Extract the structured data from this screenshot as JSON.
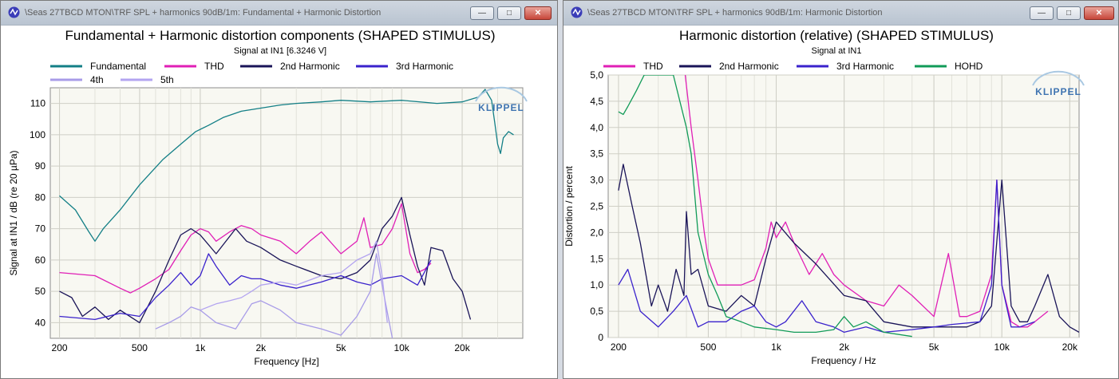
{
  "windows": [
    {
      "title": "\\Seas 27TBCD MTON\\TRF SPL + harmonics 90dB/1m: Fundamental + Harmonic Distortion",
      "buttons": {
        "minimize": "—",
        "maximize": "□",
        "close": "✕"
      }
    },
    {
      "title": "\\Seas 27TBCD MTON\\TRF SPL + harmonics 90dB/1m: Harmonic Distortion",
      "buttons": {
        "minimize": "—",
        "maximize": "□",
        "close": "✕"
      }
    }
  ],
  "icon": "klippel-app-icon",
  "chart_data": [
    {
      "type": "line",
      "title": "Fundamental + Harmonic distortion components (SHAPED STIMULUS)",
      "subtitle": "Signal at IN1 [6.3246 V]",
      "xlabel": "Frequency [Hz]",
      "ylabel": "Signal at IN1 / dB (re 20 µPa)",
      "xscale": "log",
      "xlim": [
        180,
        40000
      ],
      "ylim": [
        35,
        115
      ],
      "xticks": [
        200,
        500,
        1000,
        2000,
        5000,
        10000,
        20000
      ],
      "xtick_labels": [
        "200",
        "500",
        "1k",
        "2k",
        "5k",
        "10k",
        "20k"
      ],
      "yticks": [
        40,
        50,
        60,
        70,
        80,
        90,
        100,
        110
      ],
      "ytick_labels": [
        "40",
        "50",
        "60",
        "70",
        "80",
        "90",
        "100",
        "110"
      ],
      "grid": true,
      "legend_position": "top-left",
      "logo": "KLIPPEL",
      "series": [
        {
          "name": "Fundamental",
          "color": "#137f86",
          "x": [
            200,
            240,
            280,
            300,
            330,
            400,
            500,
            650,
            800,
            950,
            1100,
            1300,
            1600,
            2000,
            2500,
            3000,
            4000,
            5000,
            7000,
            10000,
            15000,
            20000,
            24000,
            26000,
            28000,
            29000,
            30000,
            31000,
            32000,
            34000,
            36000
          ],
          "y": [
            80.5,
            76,
            69,
            66,
            70,
            76,
            84,
            92,
            97,
            101,
            103,
            105.5,
            107.5,
            108.5,
            109.5,
            110,
            110.5,
            111,
            110.5,
            111,
            110,
            110.5,
            112,
            114.5,
            111,
            104,
            97,
            94,
            99,
            101,
            100
          ]
        },
        {
          "name": "THD",
          "color": "#e01fb6",
          "x": [
            200,
            300,
            400,
            450,
            500,
            600,
            700,
            800,
            900,
            1000,
            1100,
            1200,
            1400,
            1600,
            1800,
            2000,
            2500,
            3000,
            3500,
            4000,
            5000,
            6000,
            6500,
            7000,
            8000,
            9000,
            10000,
            11000,
            12000,
            13000,
            14000
          ],
          "y": [
            56,
            55,
            51,
            49.5,
            51,
            54,
            57,
            63,
            68,
            70,
            69,
            66,
            69,
            71,
            70,
            68,
            66,
            62,
            66,
            69,
            62,
            66,
            73.5,
            64,
            65,
            70,
            78,
            62,
            56,
            57,
            59
          ]
        },
        {
          "name": "2nd Harmonic",
          "color": "#1a1458",
          "x": [
            200,
            230,
            260,
            300,
            350,
            400,
            500,
            600,
            700,
            800,
            900,
            1000,
            1200,
            1500,
            1700,
            2000,
            2500,
            3000,
            4000,
            5000,
            6000,
            7000,
            8000,
            9000,
            10000,
            11000,
            12000,
            13000,
            14000,
            16000,
            18000,
            20000,
            22000
          ],
          "y": [
            50,
            48,
            42,
            45,
            41,
            44,
            40,
            50,
            60,
            68,
            70,
            68,
            62,
            70,
            66,
            64,
            60,
            58,
            55,
            54,
            56,
            60,
            70,
            74,
            80,
            68,
            58,
            52,
            64,
            63,
            54,
            50,
            41
          ]
        },
        {
          "name": "3rd Harmonic",
          "color": "#3a22cc",
          "x": [
            200,
            300,
            400,
            500,
            600,
            700,
            800,
            900,
            1000,
            1100,
            1200,
            1400,
            1600,
            1800,
            2000,
            2500,
            3000,
            4000,
            5000,
            6000,
            7000,
            8000,
            10000,
            12000,
            14000
          ],
          "y": [
            42,
            41,
            43,
            42,
            48,
            52,
            56,
            52,
            55,
            62,
            58,
            52,
            55,
            54,
            54,
            52,
            51,
            53,
            55,
            53,
            52,
            54,
            55,
            52,
            60
          ]
        },
        {
          "name": "4th",
          "color": "#a89ce8",
          "x": [
            600,
            700,
            800,
            900,
            1000,
            1200,
            1500,
            1800,
            2000,
            2500,
            3000,
            4000,
            5000,
            6000,
            7000,
            7500,
            8000,
            9000
          ],
          "y": [
            38,
            40,
            42,
            45,
            44,
            40,
            38,
            46,
            47,
            44,
            40,
            38,
            36,
            42,
            50,
            62,
            52,
            35
          ]
        },
        {
          "name": "5th",
          "color": "#b3a4f0",
          "x": [
            1000,
            1200,
            1400,
            1600,
            1800,
            2000,
            2500,
            3000,
            4000,
            5000,
            6000,
            7000,
            7500,
            8000,
            8500
          ],
          "y": [
            44,
            46,
            47,
            48,
            50,
            52,
            53,
            52,
            55,
            56,
            60,
            62,
            66,
            55,
            40
          ]
        }
      ]
    },
    {
      "type": "line",
      "title": "Harmonic distortion (relative) (SHAPED STIMULUS)",
      "subtitle": "Signal at IN1",
      "xlabel": "Frequency / Hz",
      "ylabel": "Distortion / percent",
      "xscale": "log",
      "xlim": [
        180,
        22000
      ],
      "ylim": [
        0,
        5
      ],
      "xticks": [
        200,
        500,
        1000,
        2000,
        5000,
        10000,
        20000
      ],
      "xtick_labels": [
        "200",
        "500",
        "1k",
        "2k",
        "5k",
        "10k",
        "20k"
      ],
      "yticks": [
        0,
        0.5,
        1,
        1.5,
        2,
        2.5,
        3,
        3.5,
        4,
        4.5,
        5
      ],
      "ytick_labels": [
        "0",
        "0,5",
        "1,0",
        "1,5",
        "2,0",
        "2,5",
        "3,0",
        "3,5",
        "4,0",
        "4,5",
        "5,0"
      ],
      "grid": true,
      "legend_position": "top",
      "logo": "KLIPPEL",
      "series": [
        {
          "name": "THD",
          "color": "#e01fb6",
          "x": [
            395,
            420,
            450,
            480,
            500,
            550,
            600,
            700,
            800,
            900,
            950,
            1000,
            1100,
            1200,
            1400,
            1600,
            1800,
            2000,
            2500,
            3000,
            3500,
            4000,
            5000,
            5800,
            6500,
            7000,
            8000,
            9000,
            9500,
            10000,
            11000,
            12000,
            13000,
            14000,
            16000
          ],
          "y": [
            5,
            4,
            3,
            2,
            1.5,
            1,
            1,
            1,
            1.1,
            1.7,
            2.2,
            1.9,
            2.2,
            1.8,
            1.2,
            1.6,
            1.2,
            1.0,
            0.7,
            0.6,
            1.0,
            0.8,
            0.4,
            1.6,
            0.4,
            0.4,
            0.5,
            1.2,
            3.0,
            1.0,
            0.3,
            0.2,
            0.2,
            0.3,
            0.5
          ]
        },
        {
          "name": "2nd Harmonic",
          "color": "#1a1458",
          "x": [
            200,
            210,
            230,
            250,
            280,
            300,
            330,
            360,
            390,
            400,
            420,
            450,
            500,
            600,
            700,
            800,
            900,
            1000,
            1200,
            1500,
            2000,
            2500,
            3000,
            4000,
            5000,
            6000,
            7000,
            8000,
            9000,
            10000,
            11000,
            12000,
            13000,
            14000,
            16000,
            18000,
            20000,
            22000
          ],
          "y": [
            2.8,
            3.3,
            2.5,
            1.8,
            0.6,
            1.0,
            0.5,
            1.3,
            0.8,
            2.4,
            1.2,
            1.3,
            0.6,
            0.5,
            0.8,
            0.6,
            1.5,
            2.2,
            1.8,
            1.4,
            0.8,
            0.7,
            0.3,
            0.2,
            0.2,
            0.2,
            0.2,
            0.3,
            0.6,
            3.0,
            0.6,
            0.3,
            0.3,
            0.6,
            1.2,
            0.4,
            0.2,
            0.1
          ]
        },
        {
          "name": "3rd Harmonic",
          "color": "#3a22cc",
          "x": [
            200,
            220,
            250,
            300,
            350,
            400,
            450,
            500,
            600,
            700,
            800,
            900,
            1000,
            1100,
            1300,
            1500,
            1800,
            2000,
            2500,
            3000,
            4000,
            5000,
            6000,
            8000,
            9000,
            9500,
            10000,
            11000,
            12000,
            14000
          ],
          "y": [
            1.0,
            1.3,
            0.5,
            0.2,
            0.5,
            0.8,
            0.2,
            0.3,
            0.3,
            0.5,
            0.6,
            0.3,
            0.2,
            0.3,
            0.7,
            0.3,
            0.2,
            0.1,
            0.2,
            0.1,
            0.15,
            0.2,
            0.25,
            0.3,
            1.0,
            3.0,
            1.0,
            0.2,
            0.2,
            0.3
          ]
        },
        {
          "name": "HOHD",
          "color": "#119b58",
          "x": [
            200,
            210,
            220,
            240,
            260,
            300,
            350,
            400,
            420,
            450,
            500,
            550,
            600,
            700,
            800,
            1000,
            1200,
            1500,
            1800,
            2000,
            2200,
            2500,
            3000,
            4000
          ],
          "y": [
            4.3,
            4.25,
            4.4,
            4.7,
            5,
            5,
            5,
            4.0,
            3.5,
            2.0,
            1.2,
            0.8,
            0.4,
            0.3,
            0.2,
            0.15,
            0.1,
            0.1,
            0.15,
            0.4,
            0.2,
            0.3,
            0.1,
            0.02
          ]
        }
      ]
    }
  ]
}
